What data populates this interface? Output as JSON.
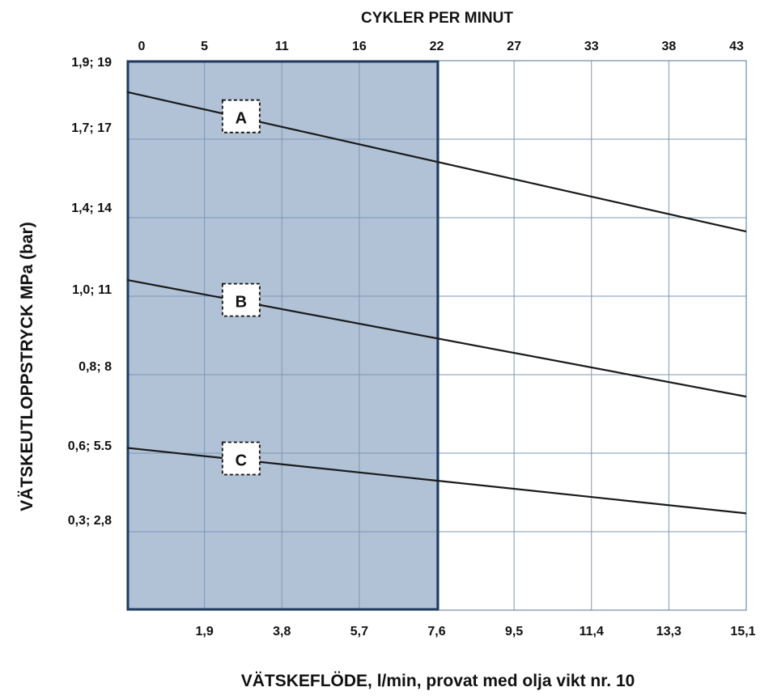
{
  "chart_data": {
    "type": "line",
    "title": "CYKLER PER MINUT",
    "xlabel": "VÄTSKEFLÖDE, l/min, provat med olja vikt nr. 10",
    "ylabel": "VÄTSKEUTLOPPSTRYCK MPa (bar)",
    "top_axis_ticks": [
      "0",
      "5",
      "11",
      "16",
      "22",
      "27",
      "33",
      "38",
      "43"
    ],
    "bottom_axis_ticks": [
      "1,9",
      "3,8",
      "5,7",
      "7,6",
      "9,5",
      "11,4",
      "13,3",
      "15,1"
    ],
    "y_ticks": [
      "1,9; 19",
      "1,7; 17",
      "1,4; 14",
      "1,0; 11",
      "0,8; 8",
      "0,6; 5.5",
      "0,3; 2,8"
    ],
    "xlim": [
      0,
      15.1
    ],
    "grid": true,
    "shaded_region_x": [
      0,
      7.6
    ],
    "shaded_color": "#b1c2d7",
    "series": [
      {
        "name": "A",
        "x": [
          0,
          15.1
        ],
        "y": [
          18.2,
          13.3
        ]
      },
      {
        "name": "B",
        "x": [
          0,
          15.1
        ],
        "y": [
          11.6,
          7.5
        ]
      },
      {
        "name": "C",
        "x": [
          0,
          15.1
        ],
        "y": [
          5.7,
          3.4
        ]
      }
    ]
  }
}
